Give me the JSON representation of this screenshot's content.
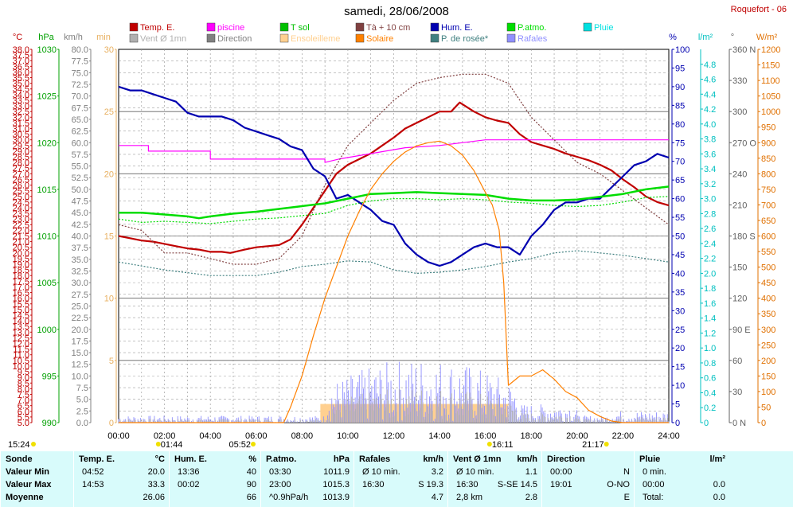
{
  "header": {
    "title": "samedi, 28/06/2008",
    "station": "Roquefort - 06"
  },
  "legend": [
    {
      "label": "Temp. E.",
      "color": "#c00000"
    },
    {
      "label": "piscine",
      "color": "#ff00ff"
    },
    {
      "label": "T sol",
      "color": "#00c000"
    },
    {
      "label": "Tà + 10 cm",
      "color": "#804040"
    },
    {
      "label": "Hum. E.",
      "color": "#0000b0"
    },
    {
      "label": "P.atmo.",
      "color": "#00dd00"
    },
    {
      "label": "Pluie",
      "color": "#00e0e0"
    },
    {
      "label": "Vent Ø 1mn",
      "color": "#b0b0b0"
    },
    {
      "label": "Direction",
      "color": "#808080"
    },
    {
      "label": "Ensoleilleme",
      "color": "#ffd090"
    },
    {
      "label": "Solaire",
      "color": "#ff8000"
    },
    {
      "label": "P. de rosée*",
      "color": "#408080"
    },
    {
      "label": "Rafales",
      "color": "#9090ff"
    }
  ],
  "axes": {
    "left_units": [
      "°C",
      "hPa",
      "km/h",
      "min"
    ],
    "right_units": [
      "%",
      "l/m²",
      "°",
      "W/m²"
    ],
    "temp_ticks": [
      "38.0",
      "37.5",
      "37.0",
      "36.5",
      "36.0",
      "35.5",
      "35.0",
      "34.5",
      "34.0",
      "33.5",
      "33.0",
      "32.5",
      "32.0",
      "31.5",
      "31.0",
      "30.5",
      "30.0",
      "29.5",
      "29.0",
      "28.5",
      "28.0",
      "27.5",
      "27.0",
      "26.5",
      "26.0",
      "25.5",
      "25.0",
      "24.5",
      "24.0",
      "23.5",
      "23.0",
      "22.5",
      "22.0",
      "21.5",
      "21.0",
      "20.5",
      "20.0",
      "19.5",
      "19.0",
      "18.5",
      "18.0",
      "17.5",
      "17.0",
      "16.5",
      "16.0",
      "15.5",
      "15.0",
      "14.5",
      "14.0",
      "13.5",
      "13.0",
      "12.5",
      "12.0",
      "11.5",
      "11.0",
      "10.5",
      "10.0",
      "9.5",
      "9.0",
      "8.5",
      "8.0",
      "7.5",
      "7.0",
      "6.5",
      "6.0",
      "5.5",
      "5.0"
    ],
    "hpa_ticks": [
      "1030",
      "1025",
      "1020",
      "1015",
      "1010",
      "1005",
      "1000",
      "995",
      "990"
    ],
    "kmh_ticks": [
      "80.0",
      "77.5",
      "75.0",
      "72.5",
      "70.0",
      "67.5",
      "65.0",
      "62.5",
      "60.0",
      "57.5",
      "55.0",
      "52.5",
      "50.0",
      "47.5",
      "45.0",
      "42.5",
      "40.0",
      "37.5",
      "35.0",
      "32.5",
      "30.0",
      "27.5",
      "25.0",
      "22.5",
      "20.0",
      "17.5",
      "15.0",
      "12.5",
      "10.0",
      "7.5",
      "5.0",
      "2.5",
      "0.0"
    ],
    "min_ticks": [
      "30",
      "25",
      "20",
      "15",
      "10",
      "5",
      "0"
    ],
    "hum_ticks": [
      "100",
      "95",
      "90",
      "85",
      "80",
      "75",
      "70",
      "65",
      "60",
      "55",
      "50",
      "45",
      "40",
      "35",
      "30",
      "25",
      "20",
      "15",
      "10",
      "5",
      "0"
    ],
    "rain_ticks": [
      "4.8",
      "4.6",
      "4.4",
      "4.2",
      "4.0",
      "3.8",
      "3.6",
      "3.4",
      "3.2",
      "3.0",
      "2.8",
      "2.6",
      "2.4",
      "2.2",
      "2.0",
      "1.8",
      "1.6",
      "1.4",
      "1.2",
      "1.0",
      "0.8",
      "0.6",
      "0.4",
      "0.2",
      "0"
    ],
    "dir_ticks": [
      "360 N",
      "330",
      "300",
      "270 O",
      "240",
      "210",
      "180 S",
      "150",
      "120",
      "90 E",
      "60",
      "30",
      "0 N"
    ],
    "wm2_ticks": [
      "1200",
      "1150",
      "1100",
      "1050",
      "1000",
      "950",
      "900",
      "850",
      "800",
      "750",
      "700",
      "650",
      "600",
      "550",
      "500",
      "450",
      "400",
      "350",
      "300",
      "250",
      "200",
      "150",
      "100",
      "50",
      "0"
    ],
    "time_ticks": [
      "00:00",
      "02:00",
      "04:00",
      "06:00",
      "08:00",
      "10:00",
      "12:00",
      "14:00",
      "16:00",
      "18:00",
      "20:00",
      "22:00",
      "24:00"
    ],
    "markers": [
      "15:24",
      "01:44",
      "05:52",
      "16:11",
      "21:17"
    ]
  },
  "chart_data": {
    "type": "line",
    "x_unit": "hours",
    "x_range": [
      0,
      24
    ],
    "series": [
      {
        "name": "Temp. E.",
        "unit": "°C",
        "color": "#c00000",
        "x": [
          0,
          0.5,
          1,
          1.5,
          2,
          2.5,
          3,
          3.5,
          4,
          4.5,
          4.87,
          5.5,
          6,
          6.5,
          7,
          7.5,
          8,
          8.5,
          9,
          9.5,
          10,
          10.5,
          11,
          11.5,
          12,
          12.5,
          13,
          13.5,
          14,
          14.5,
          14.88,
          15.5,
          16,
          16.5,
          17,
          17.5,
          18,
          18.5,
          19,
          19.5,
          20,
          20.5,
          21,
          21.5,
          22,
          22.5,
          23,
          23.5,
          24
        ],
        "y": [
          21.5,
          21.3,
          21.1,
          21.0,
          20.8,
          20.6,
          20.4,
          20.3,
          20.1,
          20.1,
          20.0,
          20.3,
          20.5,
          20.6,
          20.7,
          21.2,
          22.5,
          24.0,
          25.5,
          27.0,
          27.8,
          28.3,
          28.8,
          29.5,
          30.2,
          31.0,
          31.5,
          32.0,
          32.5,
          32.5,
          33.3,
          32.5,
          32.0,
          31.7,
          31.5,
          30.5,
          29.8,
          29.5,
          29.2,
          28.8,
          28.5,
          28.2,
          27.8,
          27.3,
          26.5,
          25.8,
          25.0,
          24.5,
          24.2
        ]
      },
      {
        "name": "piscine",
        "unit": "°C",
        "color": "#ff00ff",
        "x": [
          0,
          1.3,
          1.3,
          4,
          4,
          7,
          9,
          9,
          9.6,
          12.5,
          14,
          16,
          17,
          20,
          24
        ],
        "y": [
          29.5,
          29.5,
          29.0,
          29.0,
          28.3,
          28.3,
          28.3,
          28.0,
          28.3,
          29.3,
          29.5,
          30.0,
          30.0,
          30.0,
          30.0
        ]
      },
      {
        "name": "T sol",
        "unit": "°C",
        "color": "#00dd00",
        "x": [
          0,
          1,
          2,
          3,
          4,
          5,
          6,
          7,
          8,
          9,
          10,
          11,
          12,
          13,
          14,
          15,
          16,
          17,
          18,
          19,
          20,
          21,
          22,
          23,
          24
        ],
        "y": [
          23.0,
          22.7,
          22.8,
          22.7,
          22.6,
          22.8,
          23.0,
          23.1,
          23.3,
          23.5,
          24.2,
          24.6,
          24.8,
          24.8,
          24.7,
          24.8,
          24.7,
          24.5,
          24.4,
          24.2,
          24.1,
          24.2,
          24.5,
          24.9,
          25.0
        ]
      },
      {
        "name": "Tà + 10 cm",
        "unit": "°C",
        "color": "#804040",
        "x": [
          0,
          1,
          2,
          3,
          4,
          5,
          6,
          7,
          8,
          9,
          10,
          11,
          12,
          13,
          14,
          15,
          16,
          17,
          18,
          19,
          20,
          21,
          22,
          23,
          24
        ],
        "y": [
          22.5,
          22.0,
          20.0,
          20.0,
          19.5,
          19.0,
          19.0,
          19.5,
          21.5,
          26.0,
          29.5,
          31.5,
          33.5,
          35.0,
          35.5,
          35.8,
          35.8,
          35.0,
          32.0,
          30.0,
          28.0,
          27.0,
          25.5,
          24.0,
          22.5
        ]
      },
      {
        "name": "Hum. E.",
        "unit": "%",
        "color": "#0000b0",
        "x": [
          0,
          0.5,
          1,
          1.5,
          2,
          2.5,
          3,
          3.5,
          4,
          4.5,
          5,
          5.5,
          6,
          6.5,
          7,
          7.5,
          8,
          8.5,
          9,
          9.5,
          10,
          10.5,
          11,
          11.5,
          12,
          12.5,
          13,
          13.5,
          14,
          14.5,
          15,
          15.5,
          16,
          16.5,
          17,
          17.5,
          18,
          18.5,
          19,
          19.5,
          20,
          20.5,
          21,
          21.5,
          22,
          22.5,
          23,
          23.5,
          24
        ],
        "y": [
          90,
          89,
          89,
          88,
          87,
          86,
          83,
          82,
          82,
          82,
          81,
          79,
          78,
          77,
          76,
          74,
          73,
          68,
          66,
          60,
          61,
          59,
          57,
          54,
          53,
          48,
          45,
          43,
          42,
          43,
          45,
          47,
          48,
          47,
          47,
          45,
          50,
          53,
          57,
          59,
          59,
          60,
          60,
          63,
          66,
          69,
          70,
          72,
          71
        ]
      },
      {
        "name": "P.atmo.",
        "unit": "hPa",
        "color": "#00dd00",
        "x": [
          0,
          1,
          2,
          3,
          3.5,
          4,
          5,
          6,
          7,
          8,
          9,
          10,
          11,
          12,
          13,
          14,
          15,
          16,
          17,
          18,
          19,
          20,
          21,
          22,
          23,
          24
        ],
        "y": [
          1012.5,
          1012.5,
          1012.3,
          1012.1,
          1011.9,
          1012.1,
          1012.4,
          1012.6,
          1012.9,
          1013.2,
          1013.5,
          1014.0,
          1014.5,
          1014.6,
          1014.7,
          1014.6,
          1014.5,
          1014.4,
          1014.0,
          1013.8,
          1013.8,
          1013.9,
          1014.2,
          1014.5,
          1015.0,
          1015.3
        ]
      },
      {
        "name": "Solaire",
        "unit": "W/m²",
        "color": "#ff8000",
        "x": [
          0,
          7.2,
          7.5,
          8,
          8.5,
          9,
          9.5,
          10,
          10.5,
          11,
          11.5,
          12,
          12.5,
          13,
          13.5,
          14,
          14.5,
          15,
          15.5,
          16,
          16.3,
          16.6,
          16.8,
          17,
          17.5,
          18,
          18.5,
          19,
          19.5,
          20,
          20.5,
          21,
          21.5,
          22,
          24
        ],
        "y": [
          0,
          0,
          50,
          150,
          280,
          400,
          500,
          600,
          680,
          750,
          800,
          840,
          870,
          890,
          900,
          905,
          890,
          860,
          810,
          740,
          700,
          620,
          450,
          120,
          150,
          150,
          170,
          140,
          100,
          80,
          40,
          20,
          5,
          0,
          0
        ]
      },
      {
        "name": "P. de rosée*",
        "unit": "°C",
        "color": "#408080",
        "x": [
          0,
          2,
          4,
          6,
          7,
          8,
          9,
          10,
          11,
          12,
          13,
          14,
          15,
          16,
          17,
          18,
          19,
          20,
          21,
          22,
          23,
          24
        ],
        "y": [
          19.2,
          18.5,
          18.0,
          18.0,
          18.3,
          18.8,
          19.0,
          19.3,
          19.2,
          18.5,
          18.2,
          18.3,
          18.5,
          18.8,
          19.2,
          19.5,
          20.0,
          20.2,
          20.0,
          19.8,
          19.5,
          19.2
        ]
      }
    ],
    "ensoleillement": [
      {
        "from": 8.8,
        "to": 17.0,
        "value": 1.5
      }
    ]
  },
  "table": {
    "columns": [
      {
        "head": "Sonde",
        "unit": "",
        "rows": [
          "Valeur Min",
          "Valeur Max",
          "Moyenne"
        ],
        "vals": [
          "",
          "",
          ""
        ]
      },
      {
        "head": "Temp. E.",
        "unit": "°C",
        "rows": [
          "04:52",
          "14:53",
          ""
        ],
        "vals": [
          "20.0",
          "33.3",
          "26.06"
        ]
      },
      {
        "head": "Hum. E.",
        "unit": "%",
        "rows": [
          "13:36",
          "00:02",
          ""
        ],
        "vals": [
          "40",
          "90",
          "66"
        ]
      },
      {
        "head": "P.atmo.",
        "unit": "hPa",
        "rows": [
          "03:30",
          "23:00",
          "^0.9hPa/h"
        ],
        "vals": [
          "1011.9",
          "1015.3",
          "1013.9"
        ]
      },
      {
        "head": "Rafales",
        "unit": "km/h",
        "rows": [
          "Ø 10 min.",
          "16:30",
          ""
        ],
        "vals": [
          "3.2",
          "S 19.3",
          "4.7"
        ]
      },
      {
        "head": "Vent Ø 1mn",
        "unit": "km/h",
        "rows": [
          "Ø 10 min.",
          "16:30",
          "2,8 km"
        ],
        "vals": [
          "1.1",
          "S-SE 14.5",
          "2.8"
        ]
      },
      {
        "head": "Direction",
        "unit": "",
        "rows": [
          "00:00",
          "19:01",
          ""
        ],
        "vals": [
          "N",
          "O-NO",
          "E"
        ]
      },
      {
        "head": "Pluie",
        "unit": "l/m²",
        "rows": [
          "0 min.",
          "00:00",
          "Total:"
        ],
        "vals": [
          "",
          "0.0",
          "0.0"
        ]
      }
    ]
  }
}
